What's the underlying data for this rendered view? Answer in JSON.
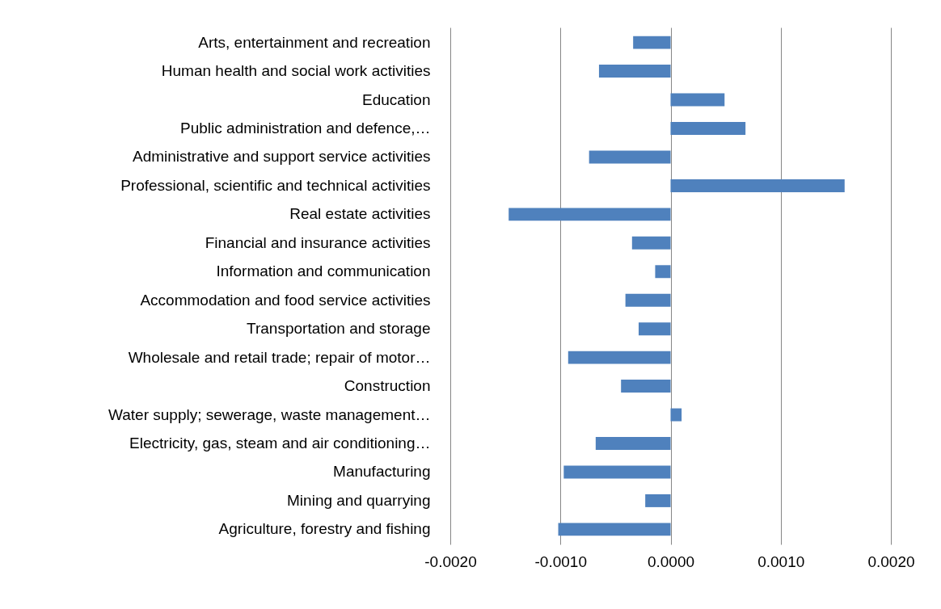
{
  "chart_data": {
    "type": "bar",
    "orientation": "horizontal",
    "categories": [
      "Arts, entertainment and recreation",
      "Human health and social work activities",
      "Education",
      "Public administration and defence,…",
      "Administrative and support service activities",
      "Professional, scientific and technical activities",
      "Real estate activities",
      "Financial and insurance activities",
      "Information and communication",
      "Accommodation and food service activities",
      "Transportation and storage",
      "Wholesale and retail trade; repair of motor…",
      "Construction",
      "Water supply; sewerage, waste management…",
      "Electricity, gas, steam and air conditioning…",
      "Manufacturing",
      "Mining and quarrying",
      "Agriculture, forestry and fishing"
    ],
    "values": [
      -0.00034,
      -0.00065,
      0.00049,
      0.00068,
      -0.00074,
      0.00158,
      -0.00147,
      -0.00035,
      -0.00014,
      -0.00041,
      -0.00029,
      -0.00093,
      -0.00045,
      0.0001,
      -0.00068,
      -0.00097,
      -0.00023,
      -0.00102
    ],
    "color": "#4f81bd",
    "xlim": [
      -0.002,
      0.002
    ],
    "xticks": [
      {
        "value": -0.002,
        "label": "-0.0020"
      },
      {
        "value": -0.001,
        "label": "-0.0010"
      },
      {
        "value": 0,
        "label": "0.0000"
      },
      {
        "value": 0.001,
        "label": "0.0010"
      },
      {
        "value": 0.002,
        "label": "0.0020"
      }
    ],
    "grid": "x"
  }
}
